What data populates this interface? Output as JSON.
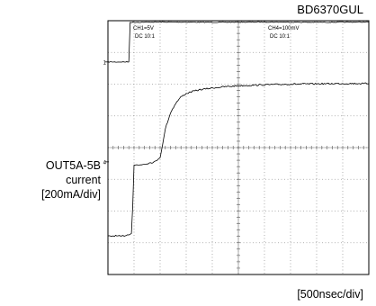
{
  "part_number": "BD6370GUL",
  "y_label": [
    "OUT5A-5B",
    "current",
    "[200mA/div]"
  ],
  "x_label": "[500nsec/div]",
  "channels": [
    {
      "label": "CH1=5V",
      "coupling": "DC  10:1"
    },
    {
      "label": "CH4=100mV",
      "coupling": "DC  10:1"
    }
  ],
  "chart_data": {
    "type": "line",
    "grid": true,
    "divisions": {
      "x": 10,
      "y": 8
    },
    "x_unit": "div (500nsec/div)",
    "y_unit": "div",
    "series": [
      {
        "x": [
          0.0,
          0.3,
          0.6,
          0.8,
          0.85,
          1.0,
          2.0,
          4.0,
          6.0,
          8.0,
          10.0
        ],
        "y": [
          6.7,
          6.7,
          6.7,
          6.7,
          7.95,
          7.95,
          7.96,
          7.95,
          7.96,
          7.95,
          7.96
        ]
      },
      {
        "x": [
          0.0,
          0.25,
          0.5,
          0.75,
          0.9,
          0.95,
          1.0,
          1.2,
          1.5,
          1.8,
          2.0,
          2.1,
          2.2,
          2.4,
          2.6,
          2.8,
          3.0,
          3.2,
          3.5,
          4.0,
          4.5,
          5.0,
          6.0,
          7.0,
          8.0,
          9.0,
          10.0
        ],
        "y": [
          1.2,
          1.22,
          1.2,
          1.25,
          1.3,
          2.2,
          3.45,
          3.45,
          3.5,
          3.55,
          3.7,
          4.1,
          4.6,
          5.1,
          5.4,
          5.6,
          5.7,
          5.76,
          5.82,
          5.88,
          5.92,
          5.95,
          5.98,
          6.0,
          6.01,
          6.02,
          6.02
        ]
      }
    ]
  }
}
